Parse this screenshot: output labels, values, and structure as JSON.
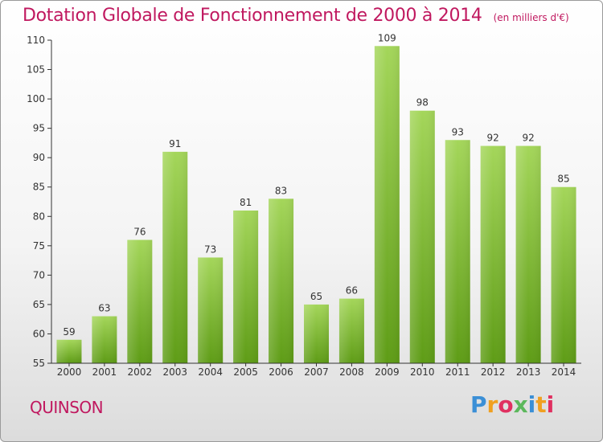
{
  "header": {
    "title": "Dotation Globale de Fonctionnement de 2000 à 2014",
    "subtitle": "(en milliers d'€)"
  },
  "footer": {
    "place": "QUINSON",
    "logo_text": "Proxiti"
  },
  "colors": {
    "title": "#c0185f",
    "bar_top": "#a4d65a",
    "bar_bottom": "#5e9c16",
    "axis": "#333333",
    "grid": "#dddddd"
  },
  "chart_data": {
    "type": "bar",
    "title": "Dotation Globale de Fonctionnement de 2000 à 2014",
    "subtitle": "(en milliers d'€)",
    "xlabel": "",
    "ylabel": "",
    "categories": [
      "2000",
      "2001",
      "2002",
      "2003",
      "2004",
      "2005",
      "2006",
      "2007",
      "2008",
      "2009",
      "2010",
      "2011",
      "2012",
      "2013",
      "2014"
    ],
    "values": [
      59,
      63,
      76,
      91,
      73,
      81,
      83,
      65,
      66,
      109,
      98,
      93,
      92,
      92,
      85
    ],
    "ylim": [
      55,
      110
    ],
    "yticks": [
      55,
      60,
      65,
      70,
      75,
      80,
      85,
      90,
      95,
      100,
      105,
      110
    ],
    "grid": false,
    "data_labels": true
  }
}
